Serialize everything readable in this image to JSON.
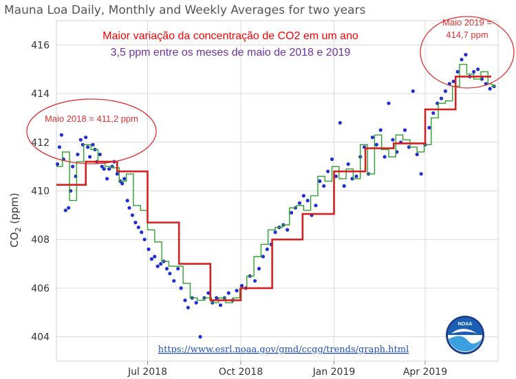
{
  "title": "Mauna Loa Daily, Monthly and Weekly Averages for two years",
  "colors": {
    "daily": "#1f2fd0",
    "weekly": "#2ca02c",
    "monthly": "#d32020",
    "annotation_red": "#ff0000",
    "annotation_purple": "#7030a0",
    "callout_red": "#e03030",
    "url_blue": "#1f4fc0",
    "grid": "#d9d9d9"
  },
  "annotations": {
    "headline": "Maior variação da concentração de CO2 em um ano",
    "subline": "3,5 ppm entre os meses de maio de 2018 e 2019",
    "callout_2018": "Maio 2018 = 411,2 ppm",
    "callout_2019_line1": "Maio 2019 =",
    "callout_2019_line2": "414,7 ppm",
    "url": "https://www.esrl.noaa.gov/gmd/ccgg/trends/graph.html"
  },
  "logo": {
    "text": "NOAA",
    "icon": "noaa-logo"
  },
  "chart_data": {
    "type": "line",
    "title": "Mauna Loa Daily, Monthly and Weekly Averages for two years",
    "ylabel": "CO2 (ppm)",
    "ylim": [
      403,
      417
    ],
    "xlim": [
      "2018-04-02",
      "2019-06-12"
    ],
    "y_ticks": [
      404,
      406,
      408,
      410,
      412,
      414,
      416
    ],
    "x_ticks": [
      {
        "date": "2018-07-01",
        "label": "Jul 2018"
      },
      {
        "date": "2018-10-01",
        "label": "Oct 2018"
      },
      {
        "date": "2019-01-01",
        "label": "Jan 2019"
      },
      {
        "date": "2019-04-01",
        "label": "Apr 2019"
      }
    ],
    "grid": true,
    "series": [
      {
        "name": "",
        "style": "monthly-step",
        "x": [
          "2018-04-01",
          "2018-05-01",
          "2018-06-01",
          "2018-07-01",
          "2018-08-01",
          "2018-09-01",
          "2018-10-01",
          "2018-11-01",
          "2018-12-01",
          "2019-01-01",
          "2019-02-01",
          "2019-03-01",
          "2019-04-01",
          "2019-05-01",
          "2019-06-01"
        ],
        "values": [
          410.25,
          411.2,
          410.8,
          408.7,
          407.0,
          405.5,
          406.0,
          408.0,
          409.05,
          410.8,
          411.75,
          411.95,
          413.35,
          414.7,
          414.7
        ]
      },
      {
        "name": "",
        "style": "weekly-step",
        "x": [
          "2018-04-01",
          "2018-04-08",
          "2018-04-15",
          "2018-04-22",
          "2018-04-29",
          "2018-05-06",
          "2018-05-13",
          "2018-05-20",
          "2018-05-27",
          "2018-06-03",
          "2018-06-10",
          "2018-06-17",
          "2018-06-24",
          "2018-07-01",
          "2018-07-08",
          "2018-07-15",
          "2018-07-22",
          "2018-07-29",
          "2018-08-05",
          "2018-08-12",
          "2018-08-19",
          "2018-08-26",
          "2018-09-02",
          "2018-09-09",
          "2018-09-16",
          "2018-09-23",
          "2018-09-30",
          "2018-10-07",
          "2018-10-14",
          "2018-10-21",
          "2018-10-28",
          "2018-11-04",
          "2018-11-11",
          "2018-11-18",
          "2018-11-25",
          "2018-12-02",
          "2018-12-09",
          "2018-12-16",
          "2018-12-23",
          "2018-12-30",
          "2019-01-06",
          "2019-01-13",
          "2019-01-20",
          "2019-01-27",
          "2019-02-03",
          "2019-02-10",
          "2019-02-17",
          "2019-02-24",
          "2019-03-03",
          "2019-03-10",
          "2019-03-17",
          "2019-03-24",
          "2019-03-31",
          "2019-04-07",
          "2019-04-14",
          "2019-04-21",
          "2019-04-28",
          "2019-05-05",
          "2019-05-12",
          "2019-05-19",
          "2019-05-26",
          "2019-06-02",
          "2019-06-09"
        ],
        "values": [
          411.0,
          411.6,
          409.6,
          411.2,
          411.9,
          411.7,
          411.2,
          411.0,
          410.95,
          410.4,
          410.7,
          409.4,
          409.2,
          408.4,
          407.9,
          407.1,
          406.9,
          406.9,
          406.2,
          405.6,
          405.5,
          405.6,
          405.4,
          405.6,
          405.4,
          405.6,
          406.0,
          406.5,
          407.3,
          407.8,
          408.4,
          408.5,
          408.6,
          409.3,
          409.4,
          409.2,
          409.8,
          410.6,
          410.4,
          411.0,
          410.5,
          410.9,
          410.5,
          411.9,
          410.7,
          412.3,
          411.7,
          411.4,
          412.3,
          412.1,
          411.8,
          411.6,
          411.9,
          413.0,
          413.6,
          413.7,
          414.3,
          415.2,
          414.8,
          414.6,
          414.9,
          414.4,
          414.3
        ]
      },
      {
        "name": "",
        "style": "daily-points",
        "x": [
          "2018-04-03",
          "2018-04-05",
          "2018-04-07",
          "2018-04-09",
          "2018-04-11",
          "2018-04-14",
          "2018-04-16",
          "2018-04-18",
          "2018-04-21",
          "2018-04-23",
          "2018-04-26",
          "2018-04-28",
          "2018-05-01",
          "2018-05-03",
          "2018-05-05",
          "2018-05-08",
          "2018-05-10",
          "2018-05-12",
          "2018-05-15",
          "2018-05-17",
          "2018-05-19",
          "2018-05-22",
          "2018-05-24",
          "2018-05-27",
          "2018-05-29",
          "2018-06-01",
          "2018-06-04",
          "2018-06-06",
          "2018-06-08",
          "2018-06-11",
          "2018-06-13",
          "2018-06-16",
          "2018-06-19",
          "2018-06-22",
          "2018-06-25",
          "2018-06-28",
          "2018-07-02",
          "2018-07-05",
          "2018-07-08",
          "2018-07-11",
          "2018-07-14",
          "2018-07-17",
          "2018-07-20",
          "2018-07-23",
          "2018-07-27",
          "2018-07-31",
          "2018-08-03",
          "2018-08-07",
          "2018-08-10",
          "2018-08-14",
          "2018-08-18",
          "2018-08-22",
          "2018-08-26",
          "2018-08-30",
          "2018-09-03",
          "2018-09-07",
          "2018-09-11",
          "2018-09-15",
          "2018-09-19",
          "2018-09-23",
          "2018-09-27",
          "2018-10-02",
          "2018-10-06",
          "2018-10-10",
          "2018-10-15",
          "2018-10-19",
          "2018-10-23",
          "2018-10-27",
          "2018-10-31",
          "2018-11-04",
          "2018-11-08",
          "2018-11-12",
          "2018-11-16",
          "2018-11-20",
          "2018-11-24",
          "2018-11-28",
          "2018-12-02",
          "2018-12-06",
          "2018-12-10",
          "2018-12-14",
          "2018-12-18",
          "2018-12-22",
          "2018-12-26",
          "2018-12-30",
          "2019-01-03",
          "2019-01-07",
          "2019-01-11",
          "2019-01-15",
          "2019-01-19",
          "2019-01-23",
          "2019-01-27",
          "2019-01-31",
          "2019-02-04",
          "2019-02-08",
          "2019-02-12",
          "2019-02-16",
          "2019-02-20",
          "2019-02-24",
          "2019-02-28",
          "2019-03-04",
          "2019-03-08",
          "2019-03-12",
          "2019-03-16",
          "2019-03-20",
          "2019-03-24",
          "2019-03-28",
          "2019-04-01",
          "2019-04-05",
          "2019-04-09",
          "2019-04-13",
          "2019-04-17",
          "2019-04-21",
          "2019-04-25",
          "2019-04-29",
          "2019-05-03",
          "2019-05-07",
          "2019-05-11",
          "2019-05-15",
          "2019-05-19",
          "2019-05-23",
          "2019-05-27",
          "2019-05-31",
          "2019-06-04",
          "2019-06-08"
        ],
        "values": [
          411.1,
          411.8,
          412.3,
          411.3,
          409.2,
          409.3,
          410.0,
          411.0,
          410.6,
          411.5,
          412.1,
          411.9,
          412.2,
          411.8,
          411.4,
          411.9,
          411.7,
          411.2,
          411.5,
          411.0,
          410.9,
          410.5,
          410.9,
          411.0,
          411.2,
          410.7,
          410.4,
          410.3,
          410.5,
          409.6,
          409.3,
          409.0,
          408.7,
          408.5,
          408.3,
          408.0,
          407.6,
          407.2,
          407.3,
          406.9,
          407.0,
          407.1,
          406.8,
          406.6,
          406.3,
          406.8,
          406.0,
          405.5,
          405.2,
          405.6,
          405.4,
          404.0,
          405.6,
          405.8,
          405.4,
          405.6,
          405.3,
          405.6,
          405.8,
          405.5,
          405.9,
          406.1,
          406.0,
          406.5,
          406.3,
          406.8,
          407.3,
          407.6,
          407.8,
          408.3,
          408.5,
          408.6,
          408.4,
          409.1,
          409.3,
          409.5,
          409.8,
          409.6,
          409.0,
          409.4,
          410.4,
          410.2,
          410.8,
          411.3,
          410.6,
          412.8,
          410.2,
          411.1,
          410.5,
          410.6,
          411.4,
          411.8,
          410.7,
          412.2,
          411.9,
          412.5,
          411.4,
          413.6,
          412.1,
          411.6,
          412.0,
          412.5,
          411.8,
          414.1,
          411.5,
          410.7,
          411.9,
          412.6,
          413.2,
          413.6,
          413.8,
          414.1,
          414.4,
          414.5,
          414.9,
          415.4,
          415.6,
          414.7,
          414.9,
          415.0,
          414.6,
          414.4,
          414.2,
          414.3
        ]
      }
    ]
  }
}
